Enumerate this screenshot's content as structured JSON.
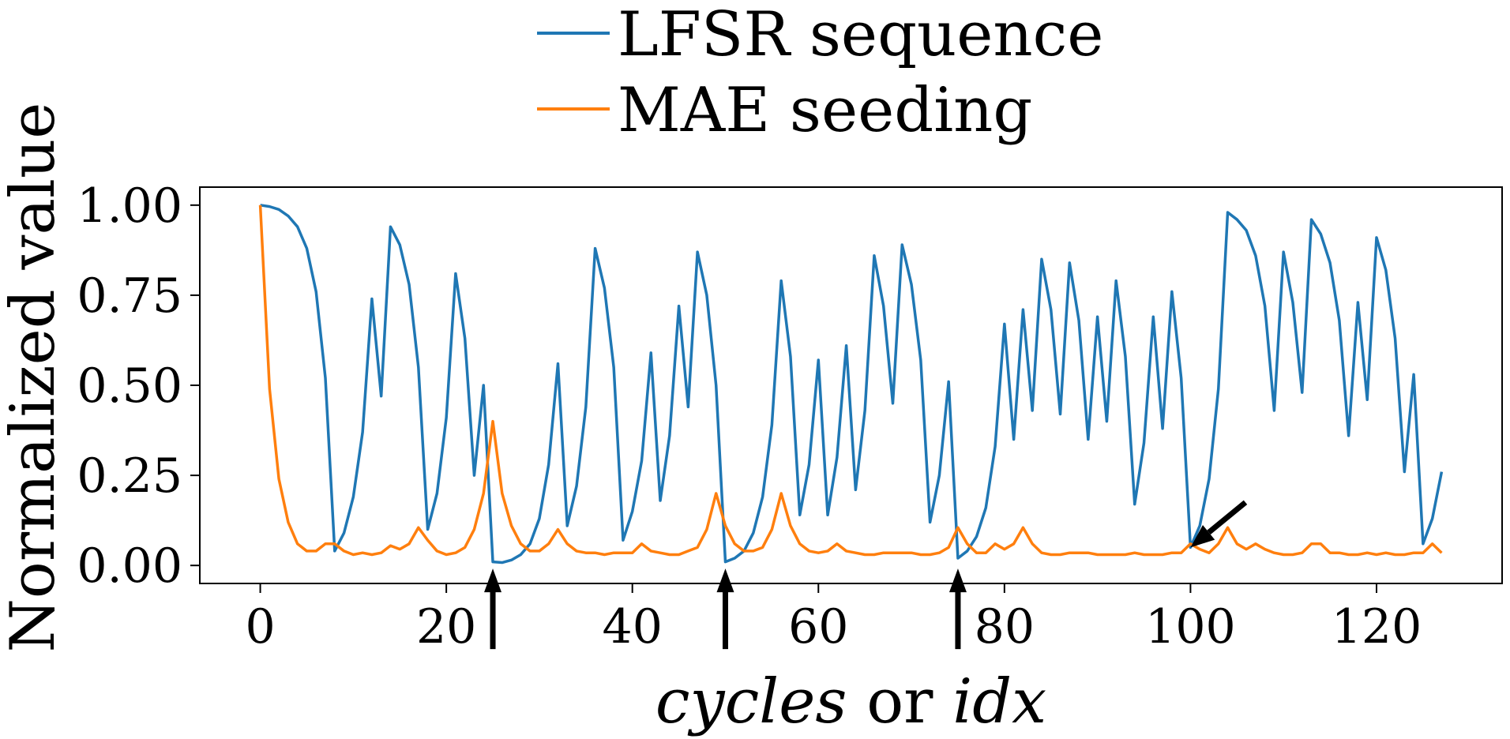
{
  "chart_data": {
    "type": "line",
    "title": "",
    "xlabel": "cycles or idx",
    "xlabel_parts": [
      {
        "text": "cycles",
        "italic": true
      },
      {
        "text": " or ",
        "italic": false
      },
      {
        "text": "idx",
        "italic": true
      }
    ],
    "ylabel": "Normalized value",
    "xlim": [
      -6.5,
      133.5
    ],
    "ylim": [
      -0.05,
      1.05
    ],
    "xticks": [
      0,
      20,
      40,
      60,
      80,
      100,
      120
    ],
    "xtick_labels": [
      "0",
      "20",
      "40",
      "60",
      "80",
      "100",
      "120"
    ],
    "yticks": [
      0.0,
      0.25,
      0.5,
      0.75,
      1.0
    ],
    "ytick_labels": [
      "0.00",
      "0.25",
      "0.50",
      "0.75",
      "1.00"
    ],
    "grid": false,
    "legend_position": "top-center",
    "series": [
      {
        "name": "LFSR sequence",
        "color": "#1f77b4",
        "values": [
          1.0,
          0.996,
          0.988,
          0.97,
          0.94,
          0.88,
          0.76,
          0.52,
          0.04,
          0.09,
          0.19,
          0.37,
          0.74,
          0.47,
          0.94,
          0.89,
          0.78,
          0.55,
          0.1,
          0.2,
          0.41,
          0.81,
          0.63,
          0.25,
          0.5,
          0.01,
          0.008,
          0.015,
          0.03,
          0.06,
          0.13,
          0.28,
          0.56,
          0.11,
          0.22,
          0.44,
          0.88,
          0.77,
          0.55,
          0.07,
          0.15,
          0.29,
          0.59,
          0.18,
          0.36,
          0.72,
          0.44,
          0.87,
          0.75,
          0.5,
          0.01,
          0.02,
          0.04,
          0.09,
          0.19,
          0.39,
          0.79,
          0.58,
          0.14,
          0.28,
          0.57,
          0.14,
          0.3,
          0.61,
          0.21,
          0.43,
          0.86,
          0.72,
          0.45,
          0.89,
          0.78,
          0.57,
          0.12,
          0.25,
          0.51,
          0.02,
          0.04,
          0.08,
          0.16,
          0.33,
          0.67,
          0.35,
          0.71,
          0.43,
          0.85,
          0.71,
          0.42,
          0.84,
          0.68,
          0.35,
          0.69,
          0.4,
          0.79,
          0.58,
          0.17,
          0.34,
          0.69,
          0.38,
          0.76,
          0.52,
          0.05,
          0.11,
          0.24,
          0.49,
          0.98,
          0.96,
          0.93,
          0.86,
          0.72,
          0.43,
          0.87,
          0.73,
          0.48,
          0.96,
          0.92,
          0.84,
          0.68,
          0.36,
          0.73,
          0.46,
          0.91,
          0.82,
          0.63,
          0.26,
          0.53,
          0.06,
          0.13,
          0.26
        ]
      },
      {
        "name": "MAE seeding",
        "color": "#ff7f0e",
        "values": [
          1.0,
          0.49,
          0.24,
          0.12,
          0.06,
          0.04,
          0.04,
          0.06,
          0.06,
          0.04,
          0.03,
          0.035,
          0.03,
          0.035,
          0.055,
          0.045,
          0.06,
          0.105,
          0.07,
          0.04,
          0.03,
          0.035,
          0.05,
          0.1,
          0.2,
          0.4,
          0.2,
          0.11,
          0.06,
          0.04,
          0.04,
          0.06,
          0.1,
          0.06,
          0.04,
          0.035,
          0.035,
          0.03,
          0.035,
          0.035,
          0.035,
          0.06,
          0.04,
          0.035,
          0.03,
          0.03,
          0.04,
          0.05,
          0.1,
          0.2,
          0.11,
          0.06,
          0.04,
          0.04,
          0.05,
          0.1,
          0.2,
          0.11,
          0.06,
          0.04,
          0.035,
          0.04,
          0.06,
          0.04,
          0.035,
          0.03,
          0.03,
          0.035,
          0.035,
          0.035,
          0.035,
          0.03,
          0.03,
          0.035,
          0.05,
          0.105,
          0.06,
          0.035,
          0.035,
          0.06,
          0.045,
          0.06,
          0.105,
          0.06,
          0.035,
          0.03,
          0.03,
          0.035,
          0.035,
          0.035,
          0.03,
          0.03,
          0.03,
          0.03,
          0.035,
          0.03,
          0.03,
          0.03,
          0.035,
          0.035,
          0.06,
          0.045,
          0.035,
          0.06,
          0.105,
          0.06,
          0.045,
          0.06,
          0.045,
          0.035,
          0.03,
          0.03,
          0.035,
          0.06,
          0.06,
          0.035,
          0.035,
          0.03,
          0.03,
          0.035,
          0.03,
          0.035,
          0.03,
          0.03,
          0.035,
          0.035,
          0.06,
          0.035
        ]
      }
    ],
    "annotations": [
      {
        "type": "arrow",
        "direction": "up",
        "x": 25,
        "y": 0.0
      },
      {
        "type": "arrow",
        "direction": "up",
        "x": 50,
        "y": 0.0
      },
      {
        "type": "arrow",
        "direction": "up",
        "x": 75,
        "y": 0.0
      },
      {
        "type": "arrow",
        "direction": "down-left",
        "x": 100,
        "y": 0.05
      }
    ]
  }
}
